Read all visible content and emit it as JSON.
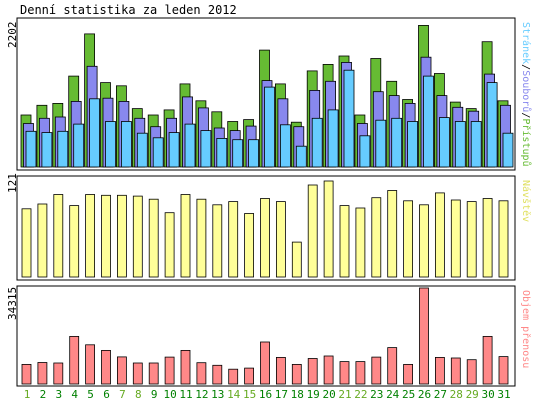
{
  "title": "Denní statistika za leden 2012",
  "colors": {
    "hits": "#66bb33",
    "files": "#8888ee",
    "pages": "#66ccff",
    "visits": "#ffff99",
    "kbytes": "#ff8888",
    "weekday_label": "#008000",
    "weekend_label": "#66aa22",
    "outline": "#000000"
  },
  "panels": {
    "top": {
      "ymax_label": "2202",
      "legend": [
        "Stránek",
        "Souborů",
        "Přístupů"
      ]
    },
    "middle": {
      "ymax_label": "121",
      "legend": [
        "Návštěv"
      ]
    },
    "bottom": {
      "ymax_label": "34315",
      "legend": [
        "Objem přenosu"
      ]
    }
  },
  "chart_data": [
    {
      "type": "bar",
      "title": "Denní statistika za leden 2012",
      "categories": [
        "1",
        "2",
        "3",
        "4",
        "5",
        "6",
        "7",
        "8",
        "9",
        "10",
        "11",
        "12",
        "13",
        "14",
        "15",
        "16",
        "17",
        "18",
        "19",
        "20",
        "21",
        "22",
        "23",
        "24",
        "25",
        "26",
        "27",
        "28",
        "29",
        "30",
        "31"
      ],
      "weekend_days": [
        "1",
        "7",
        "8",
        "14",
        "15",
        "21",
        "22",
        "28",
        "29"
      ],
      "ylim": [
        0,
        2202
      ],
      "series": [
        {
          "name": "Přístupů",
          "values": [
            800,
            950,
            980,
            1400,
            2050,
            1300,
            1250,
            900,
            800,
            880,
            1280,
            1020,
            850,
            700,
            730,
            1800,
            1280,
            690,
            1480,
            1580,
            1710,
            800,
            1670,
            1320,
            1040,
            2180,
            1440,
            1000,
            900,
            1930,
            1020
          ]
        },
        {
          "name": "Souborů",
          "values": [
            670,
            750,
            770,
            1010,
            1550,
            1060,
            1010,
            750,
            620,
            750,
            1080,
            910,
            600,
            560,
            630,
            1330,
            1050,
            620,
            1180,
            1320,
            1610,
            670,
            1160,
            1100,
            980,
            1690,
            1100,
            920,
            860,
            1430,
            950
          ]
        },
        {
          "name": "Stránek",
          "values": [
            550,
            530,
            550,
            660,
            1050,
            700,
            700,
            520,
            450,
            530,
            660,
            560,
            440,
            420,
            420,
            1230,
            650,
            320,
            750,
            880,
            1490,
            480,
            720,
            750,
            700,
            1400,
            760,
            700,
            700,
            1300,
            520
          ]
        }
      ]
    },
    {
      "type": "bar",
      "categories": [
        "1",
        "2",
        "3",
        "4",
        "5",
        "6",
        "7",
        "8",
        "9",
        "10",
        "11",
        "12",
        "13",
        "14",
        "15",
        "16",
        "17",
        "18",
        "19",
        "20",
        "21",
        "22",
        "23",
        "24",
        "25",
        "26",
        "27",
        "28",
        "29",
        "30",
        "31"
      ],
      "ylim": [
        0,
        121
      ],
      "series": [
        {
          "name": "Návštěv",
          "values": [
            86,
            92,
            104,
            90,
            104,
            103,
            103,
            102,
            98,
            81,
            104,
            98,
            91,
            95,
            80,
            99,
            95,
            44,
            116,
            121,
            90,
            87,
            100,
            109,
            96,
            91,
            106,
            97,
            95,
            99,
            96
          ]
        }
      ]
    },
    {
      "type": "bar",
      "categories": [
        "1",
        "2",
        "3",
        "4",
        "5",
        "6",
        "7",
        "8",
        "9",
        "10",
        "11",
        "12",
        "13",
        "14",
        "15",
        "16",
        "17",
        "18",
        "19",
        "20",
        "21",
        "22",
        "23",
        "24",
        "25",
        "26",
        "27",
        "28",
        "29",
        "30",
        "31"
      ],
      "ylim": [
        0,
        34315
      ],
      "series": [
        {
          "name": "Objem přenosu",
          "values": [
            7000,
            7700,
            7500,
            17000,
            14000,
            12000,
            9700,
            7500,
            7500,
            9600,
            12000,
            7600,
            6700,
            5300,
            5700,
            15000,
            9500,
            7000,
            9100,
            10000,
            8000,
            8000,
            9600,
            13000,
            7000,
            34315,
            9500,
            9300,
            8700,
            17000,
            9800
          ]
        }
      ]
    }
  ]
}
